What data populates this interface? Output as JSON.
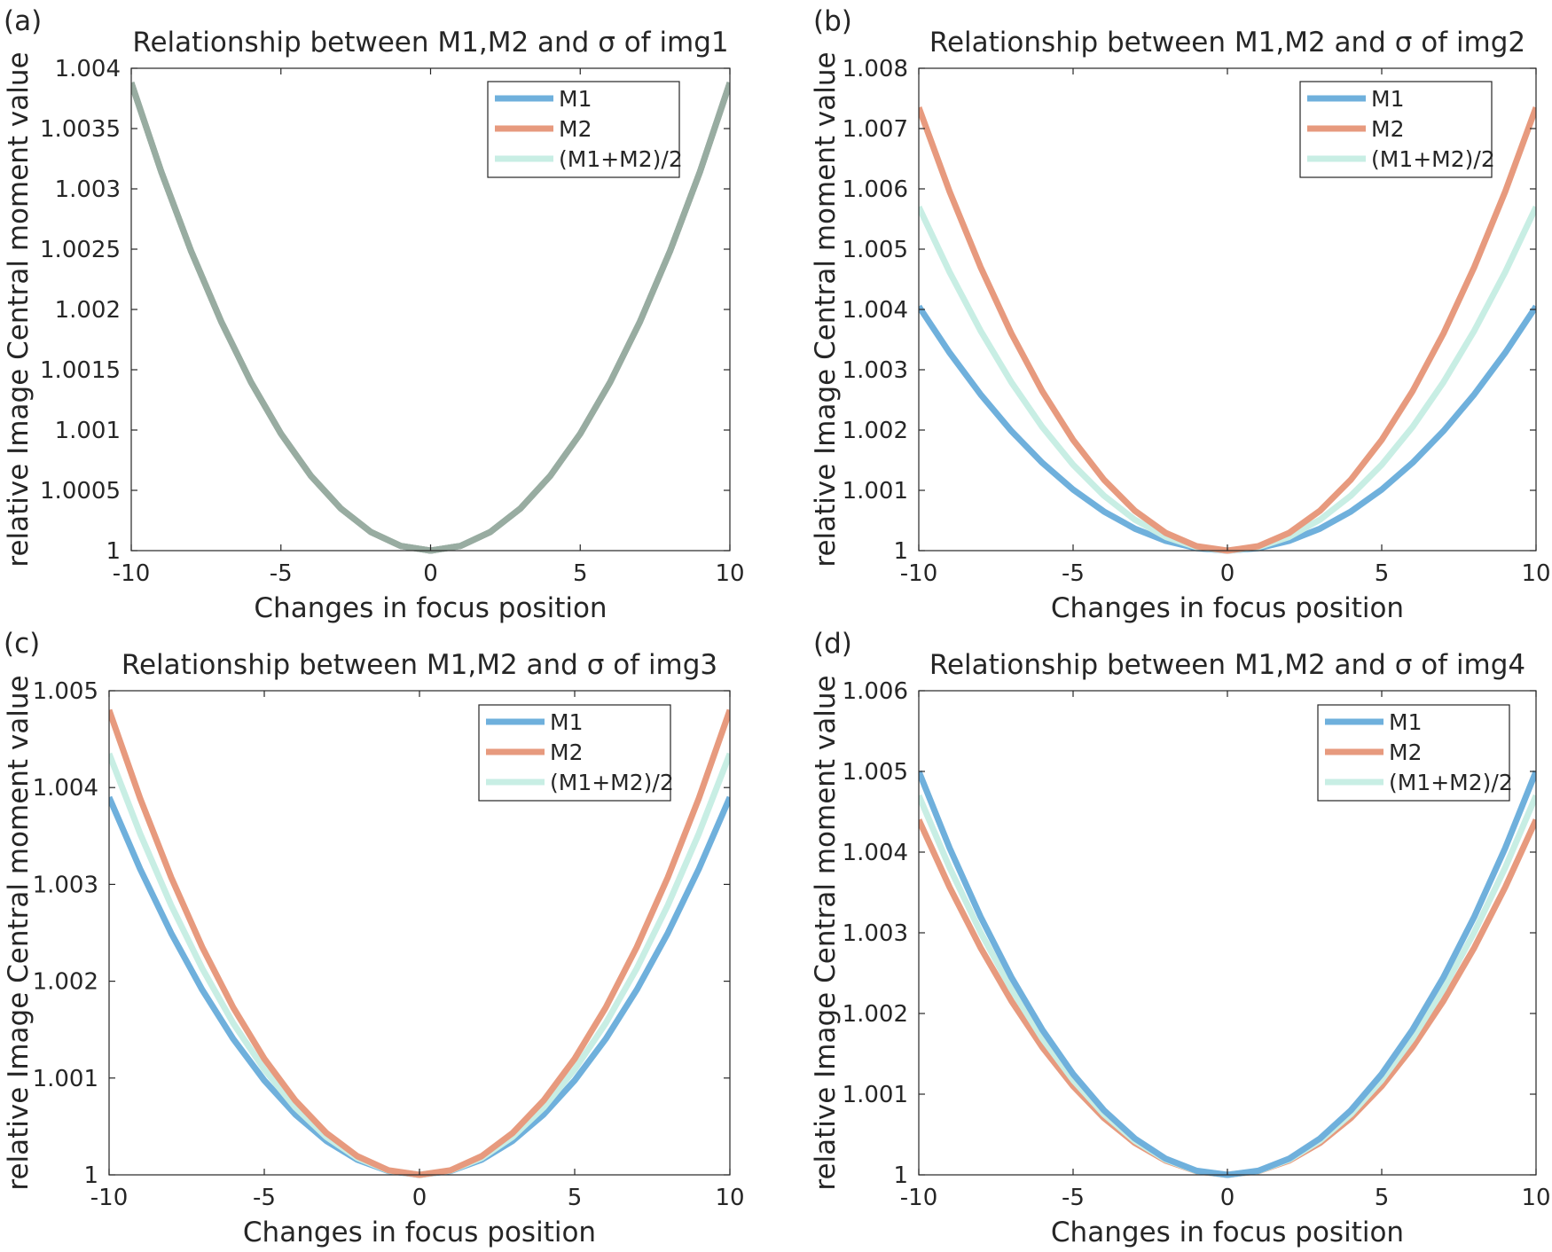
{
  "chart_data": [
    {
      "panel": "(a)",
      "type": "line",
      "title": "Relationship between M1,M2 and σ of img1",
      "xlabel": "Changes in focus position",
      "ylabel": "relative Image Central moment value",
      "xlim": [
        -10,
        10
      ],
      "ylim": [
        1,
        1.004
      ],
      "xticks": [
        -10,
        -5,
        0,
        5,
        10
      ],
      "yticks": [
        1,
        1.0005,
        1.001,
        1.0015,
        1.002,
        1.0025,
        1.003,
        1.0035,
        1.004
      ],
      "ytick_labels": [
        "1",
        "1.0005",
        "1.001",
        "1.0015",
        "1.002",
        "1.0025",
        "1.003",
        "1.0035",
        "1.004"
      ],
      "legend": "top-right",
      "series": [
        {
          "name": "M1",
          "color": "#6fb0dc",
          "y_at_pm10": 1.00388,
          "curvature": "quadratic"
        },
        {
          "name": "M2",
          "color": "#e79a7e",
          "y_at_pm10": 1.00388,
          "curvature": "quadratic"
        },
        {
          "name": "(M1+M2)/2",
          "color": "#c8eee4",
          "y_at_pm10": 1.00388,
          "curvature": "quadratic"
        }
      ],
      "overlap_color": "#98aca1"
    },
    {
      "panel": "(b)",
      "type": "line",
      "title": "Relationship between M1,M2 and σ of img2",
      "xlabel": "Changes in focus position",
      "ylabel": "relative Image Central moment value",
      "xlim": [
        -10,
        10
      ],
      "ylim": [
        1,
        1.008
      ],
      "xticks": [
        -10,
        -5,
        0,
        5,
        10
      ],
      "yticks": [
        1,
        1.001,
        1.002,
        1.003,
        1.004,
        1.005,
        1.006,
        1.007,
        1.008
      ],
      "ytick_labels": [
        "1",
        "1.001",
        "1.002",
        "1.003",
        "1.004",
        "1.005",
        "1.006",
        "1.007",
        "1.008"
      ],
      "legend": "top-right",
      "series": [
        {
          "name": "M1",
          "color": "#6fb0dc",
          "y_at_pm10": 1.00405
        },
        {
          "name": "M2",
          "color": "#e79a7e",
          "y_at_pm10": 1.00735
        },
        {
          "name": "(M1+M2)/2",
          "color": "#c8eee4",
          "y_at_pm10": 1.0057
        }
      ]
    },
    {
      "panel": "(c)",
      "type": "line",
      "title": "Relationship between M1,M2 and σ of img3",
      "xlabel": "Changes in focus position",
      "ylabel": "relative Image Central moment value",
      "xlim": [
        -10,
        10
      ],
      "ylim": [
        1,
        1.005
      ],
      "xticks": [
        -10,
        -5,
        0,
        5,
        10
      ],
      "yticks": [
        1,
        1.001,
        1.002,
        1.003,
        1.004,
        1.005
      ],
      "ytick_labels": [
        "1",
        "1.001",
        "1.002",
        "1.003",
        "1.004",
        "1.005"
      ],
      "legend": "top-right",
      "series": [
        {
          "name": "M1",
          "color": "#6fb0dc",
          "y_at_pm10": 1.0039
        },
        {
          "name": "M2",
          "color": "#e79a7e",
          "y_at_pm10": 1.0048
        },
        {
          "name": "(M1+M2)/2",
          "color": "#c8eee4",
          "y_at_pm10": 1.00435
        }
      ]
    },
    {
      "panel": "(d)",
      "type": "line",
      "title": "Relationship between M1,M2 and σ of img4",
      "xlabel": "Changes in focus position",
      "ylabel": "relative Image Central moment value",
      "xlim": [
        -10,
        10
      ],
      "ylim": [
        1,
        1.006
      ],
      "xticks": [
        -10,
        -5,
        0,
        5,
        10
      ],
      "yticks": [
        1,
        1.001,
        1.002,
        1.003,
        1.004,
        1.005,
        1.006
      ],
      "ytick_labels": [
        "1",
        "1.001",
        "1.002",
        "1.003",
        "1.004",
        "1.005",
        "1.006"
      ],
      "legend": "top-right",
      "series": [
        {
          "name": "M1",
          "color": "#6fb0dc",
          "y_at_pm10": 1.005
        },
        {
          "name": "M2",
          "color": "#e79a7e",
          "y_at_pm10": 1.0044
        },
        {
          "name": "(M1+M2)/2",
          "color": "#c8eee4",
          "y_at_pm10": 1.0047
        }
      ]
    }
  ]
}
